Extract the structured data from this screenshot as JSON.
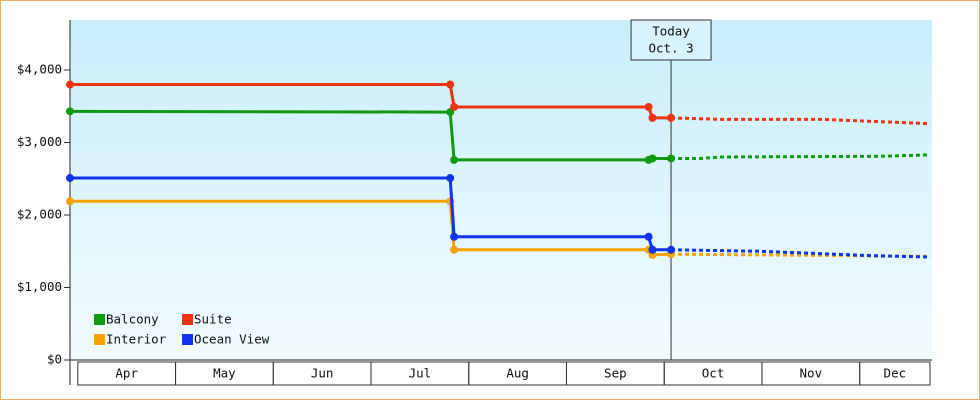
{
  "chart_data": {
    "type": "line",
    "categories": [
      "Apr",
      "May",
      "Jun",
      "Jul",
      "Aug",
      "Sep",
      "Oct",
      "Nov",
      "Dec"
    ],
    "category_edges": [
      4,
      5,
      6,
      7,
      8,
      9,
      10,
      11,
      12
    ],
    "xlim": [
      3.92,
      12.74
    ],
    "ylim": [
      0,
      4690
    ],
    "yticks": [
      {
        "value": 0,
        "label": "$0"
      },
      {
        "value": 1000,
        "label": "$1,000"
      },
      {
        "value": 2000,
        "label": "$2,000"
      },
      {
        "value": 3000,
        "label": "$3,000"
      },
      {
        "value": 4000,
        "label": "$4,000"
      }
    ],
    "today": {
      "x": 10.07,
      "label": "Today",
      "date": "Oct. 3"
    },
    "series": [
      {
        "name": "Balcony",
        "color": "#129912",
        "x": [
          3.92,
          7.81,
          7.85,
          9.84,
          9.88,
          10.07
        ],
        "values": [
          3430,
          3420,
          2760,
          2760,
          2780,
          2780
        ],
        "forecast_x": [
          10.07,
          10.37,
          10.57,
          12.21,
          12.72
        ],
        "forecast_values": [
          2780,
          2780,
          2800,
          2810,
          2830
        ]
      },
      {
        "name": "Suite",
        "color": "#ee3311",
        "x": [
          3.92,
          7.81,
          7.85,
          9.84,
          9.88,
          10.07
        ],
        "values": [
          3800,
          3800,
          3490,
          3490,
          3340,
          3340
        ],
        "forecast_x": [
          10.07,
          10.57,
          11.6,
          12.72
        ],
        "forecast_values": [
          3340,
          3320,
          3320,
          3260
        ]
      },
      {
        "name": "Interior",
        "color": "#f5a300",
        "x": [
          3.92,
          7.81,
          7.85,
          9.84,
          9.88,
          10.07
        ],
        "values": [
          2190,
          2190,
          1520,
          1520,
          1450,
          1460
        ],
        "forecast_x": [
          10.07,
          10.98,
          12.72
        ],
        "forecast_values": [
          1460,
          1450,
          1430
        ]
      },
      {
        "name": "Ocean View",
        "color": "#1133ee",
        "x": [
          3.92,
          7.81,
          7.85,
          9.84,
          9.88,
          10.07
        ],
        "values": [
          2510,
          2510,
          1700,
          1700,
          1520,
          1520
        ],
        "forecast_x": [
          10.07,
          10.98,
          12.11,
          12.72
        ],
        "forecast_values": [
          1520,
          1500,
          1440,
          1420
        ]
      }
    ]
  }
}
